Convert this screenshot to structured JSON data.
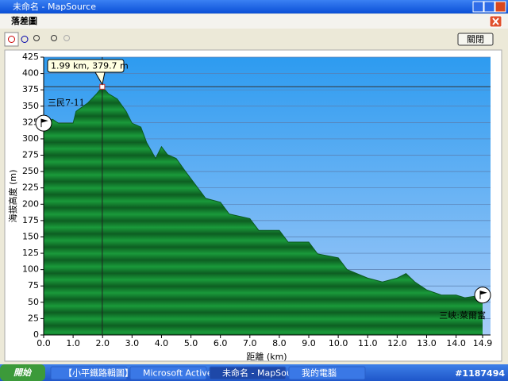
{
  "window": {
    "title": "未命名 - MapSource"
  },
  "dialog": {
    "title": "落差圖",
    "close_button": "關閉"
  },
  "chart_data": {
    "type": "area",
    "xlabel": "距離 (km)",
    "ylabel": "海拔高度 (m)",
    "x": [
      0,
      0.3,
      0.5,
      1.0,
      1.1,
      1.5,
      1.8,
      1.99,
      2.2,
      2.5,
      2.8,
      3.0,
      3.3,
      3.5,
      3.8,
      4.0,
      4.2,
      4.5,
      4.8,
      5.0,
      5.3,
      5.5,
      6.0,
      6.3,
      7.0,
      7.3,
      8.0,
      8.3,
      9.0,
      9.3,
      10.0,
      10.3,
      11.0,
      11.5,
      12.0,
      12.3,
      12.6,
      13.0,
      13.5,
      14.0,
      14.3,
      14.9
    ],
    "values": [
      324,
      330,
      324,
      324,
      342,
      355,
      369,
      379.7,
      369,
      361,
      342,
      324,
      318,
      294,
      270,
      288,
      276,
      270,
      251,
      239,
      221,
      209,
      203,
      185,
      178,
      160,
      160,
      142,
      142,
      124,
      118,
      100,
      87,
      81,
      87,
      94,
      81,
      69,
      61,
      61,
      57,
      61
    ],
    "xlim": [
      0,
      15.17
    ],
    "ylim": [
      0,
      425
    ],
    "xticks": [
      {
        "value": 0,
        "label": "0.0"
      },
      {
        "value": 1,
        "label": "1.0"
      },
      {
        "value": 2,
        "label": "2.0"
      },
      {
        "value": 3,
        "label": "3.0"
      },
      {
        "value": 4,
        "label": "4.0"
      },
      {
        "value": 5,
        "label": "5.0"
      },
      {
        "value": 6,
        "label": "6.0"
      },
      {
        "value": 7,
        "label": "7.0"
      },
      {
        "value": 8,
        "label": "8.0"
      },
      {
        "value": 9,
        "label": "9.0"
      },
      {
        "value": 10,
        "label": "10.0"
      },
      {
        "value": 11,
        "label": "11.0"
      },
      {
        "value": 12,
        "label": "12.0"
      },
      {
        "value": 13,
        "label": "13.0"
      },
      {
        "value": 14,
        "label": "14.0"
      },
      14.9
    ],
    "yticks": [
      0,
      25,
      50,
      75,
      100,
      125,
      150,
      175,
      200,
      225,
      250,
      275,
      300,
      325,
      350,
      375,
      400,
      425
    ],
    "grid": true,
    "cursor": {
      "x": 1.99,
      "y": 379.7,
      "label": "1.99 km, 379.7 m"
    },
    "waypoints": [
      "三民7-11",
      "三峽:萊爾富"
    ]
  },
  "taskbar": {
    "start": "開始",
    "items": [
      "【小平鐵路輯圖】...",
      "Microsoft ActiveSync",
      "未命名 - MapSource",
      "我的電腦"
    ],
    "watermark": "#1187494"
  }
}
